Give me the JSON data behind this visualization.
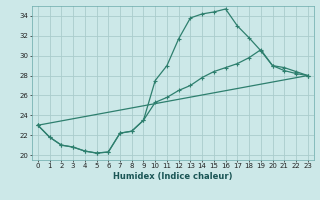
{
  "xlabel": "Humidex (Indice chaleur)",
  "bg_color": "#cce8e8",
  "grid_color": "#aacccc",
  "line_color": "#2e7f6e",
  "xlim": [
    -0.5,
    23.5
  ],
  "ylim": [
    19.5,
    35.0
  ],
  "yticks": [
    20,
    22,
    24,
    26,
    28,
    30,
    32,
    34
  ],
  "xticks": [
    0,
    1,
    2,
    3,
    4,
    5,
    6,
    7,
    8,
    9,
    10,
    11,
    12,
    13,
    14,
    15,
    16,
    17,
    18,
    19,
    20,
    21,
    22,
    23
  ],
  "series1": [
    [
      0,
      23.0
    ],
    [
      1,
      21.8
    ],
    [
      2,
      21.0
    ],
    [
      3,
      20.8
    ],
    [
      4,
      20.4
    ],
    [
      5,
      20.2
    ],
    [
      6,
      20.3
    ],
    [
      7,
      22.2
    ],
    [
      8,
      22.4
    ],
    [
      9,
      23.5
    ],
    [
      10,
      27.5
    ],
    [
      11,
      29.0
    ],
    [
      12,
      31.7
    ],
    [
      13,
      33.8
    ],
    [
      14,
      34.2
    ],
    [
      15,
      34.4
    ],
    [
      16,
      34.7
    ],
    [
      17,
      33.0
    ],
    [
      18,
      31.8
    ],
    [
      19,
      30.5
    ],
    [
      20,
      29.0
    ],
    [
      21,
      28.5
    ],
    [
      22,
      28.2
    ],
    [
      23,
      28.0
    ]
  ],
  "series2": [
    [
      0,
      23.0
    ],
    [
      1,
      21.8
    ],
    [
      2,
      21.0
    ],
    [
      3,
      20.8
    ],
    [
      4,
      20.4
    ],
    [
      5,
      20.2
    ],
    [
      6,
      20.3
    ],
    [
      7,
      22.2
    ],
    [
      8,
      22.4
    ],
    [
      9,
      23.5
    ],
    [
      10,
      25.3
    ],
    [
      11,
      25.8
    ],
    [
      12,
      26.5
    ],
    [
      13,
      27.0
    ],
    [
      14,
      27.8
    ],
    [
      15,
      28.4
    ],
    [
      16,
      28.8
    ],
    [
      17,
      29.2
    ],
    [
      18,
      29.8
    ],
    [
      19,
      30.6
    ],
    [
      20,
      29.0
    ],
    [
      21,
      28.8
    ],
    [
      22,
      28.4
    ],
    [
      23,
      28.0
    ]
  ],
  "series3": [
    [
      0,
      23.0
    ],
    [
      23,
      28.0
    ]
  ]
}
